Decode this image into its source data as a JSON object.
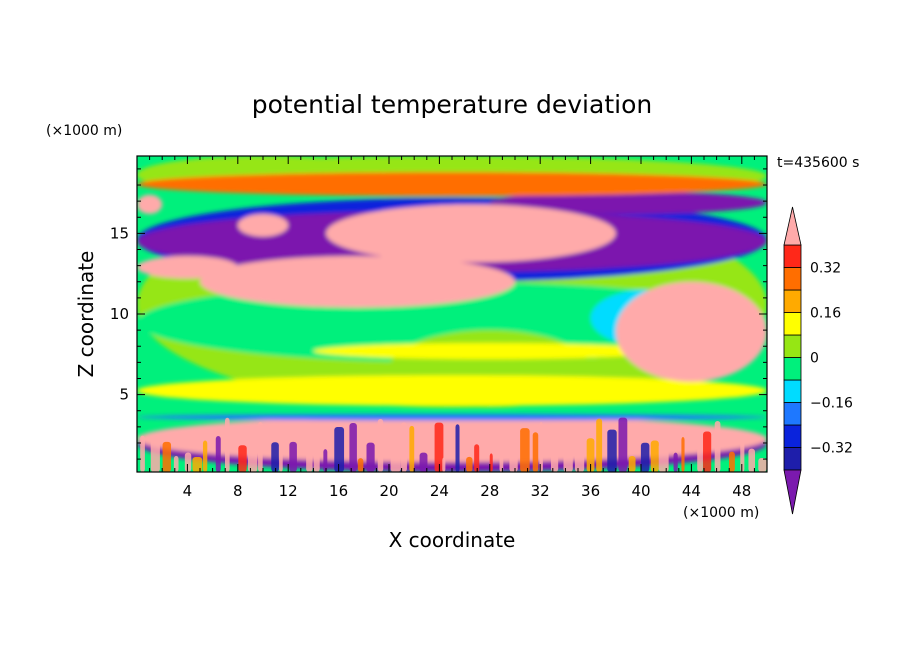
{
  "chart_data": {
    "type": "heatmap",
    "title": "potential temperature deviation",
    "time_label": "t=435600 s",
    "xlabel": "X coordinate",
    "ylabel": "Z coordinate",
    "x_unit": "(×1000 m)",
    "y_unit": "(×1000 m)",
    "xlim": [
      0,
      50
    ],
    "ylim": [
      0.2,
      19.8
    ],
    "x_ticks": [
      4,
      8,
      12,
      16,
      20,
      24,
      28,
      32,
      36,
      40,
      44,
      48
    ],
    "y_ticks": [
      5,
      10,
      15
    ],
    "colorbar": {
      "levels": [
        -0.4,
        -0.32,
        -0.24,
        -0.16,
        -0.08,
        0,
        0.08,
        0.16,
        0.24,
        0.32,
        0.4
      ],
      "labeled_levels": [
        0.32,
        0.16,
        0,
        -0.16,
        -0.32
      ],
      "colors": [
        "#7b19ae",
        "#1e1eaa",
        "#0a23dc",
        "#1e78ff",
        "#00dcff",
        "#00f07c",
        "#96e614",
        "#ffff00",
        "#ffaa00",
        "#ff6e00",
        "#ff2819",
        "#ffaaaa"
      ],
      "extend": "both"
    },
    "regions": [
      {
        "level": 0.05,
        "x0": 0,
        "x1": 50,
        "z0": 4.2,
        "z1": 17
      },
      {
        "level": 0.05,
        "x0": 0,
        "x1": 20,
        "z0": 17.5,
        "z1": 19.8
      },
      {
        "level": -0.02,
        "x0": 0,
        "x1": 50,
        "z0": 7,
        "z1": 12
      },
      {
        "level": 0.02,
        "x0": 0,
        "x1": 50,
        "z0": 17.3,
        "z1": 19.8
      },
      {
        "level": 0.02,
        "x0": 20,
        "x1": 36,
        "z0": 4.2,
        "z1": 9
      },
      {
        "level": 0.12,
        "x0": 0,
        "x1": 50,
        "z0": 4.3,
        "z1": 6.2
      },
      {
        "level": 0.14,
        "x0": 14,
        "x1": 42,
        "z0": 7.2,
        "z1": 8.2
      },
      {
        "level": -0.12,
        "x0": 36,
        "x1": 45,
        "z0": 8,
        "z1": 11.5
      },
      {
        "level": -0.3,
        "x0": 0,
        "x1": 50,
        "z0": 12,
        "z1": 17.2
      },
      {
        "level": -0.45,
        "x0": 0,
        "x1": 50,
        "z0": 12.6,
        "z1": 16.4
      },
      {
        "level": -0.45,
        "x0": 28,
        "x1": 50,
        "z0": 16.2,
        "z1": 17.6
      },
      {
        "level": 0.45,
        "x0": 0,
        "x1": 8,
        "z0": 12.2,
        "z1": 13.6
      },
      {
        "level": 0.45,
        "x0": 5,
        "x1": 30,
        "z0": 10.4,
        "z1": 13.6
      },
      {
        "level": 0.45,
        "x0": 15,
        "x1": 38,
        "z0": 13.2,
        "z1": 16.8
      },
      {
        "level": 0.45,
        "x0": 8,
        "x1": 12,
        "z0": 14.8,
        "z1": 16.2
      },
      {
        "level": 0.45,
        "x0": 38,
        "x1": 50,
        "z0": 5.8,
        "z1": 12
      },
      {
        "level": 0.45,
        "x0": 0,
        "x1": 2,
        "z0": 16.2,
        "z1": 17.4
      },
      {
        "level": 0.3,
        "x0": 0,
        "x1": 50,
        "z0": 17.3,
        "z1": 18.8
      },
      {
        "level": -0.45,
        "x0": 0,
        "x1": 50,
        "z0": 0.2,
        "z1": 3.7
      },
      {
        "level": 0.45,
        "x0": 0,
        "x1": 50,
        "z0": 0.8,
        "z1": 3.7
      },
      {
        "level": 0.45,
        "x0": 31,
        "x1": 34,
        "z0": 1,
        "z1": 3.6
      },
      {
        "level": -0.2,
        "x0": 0,
        "x1": 50,
        "z0": 3.4,
        "z1": 3.8
      }
    ]
  }
}
